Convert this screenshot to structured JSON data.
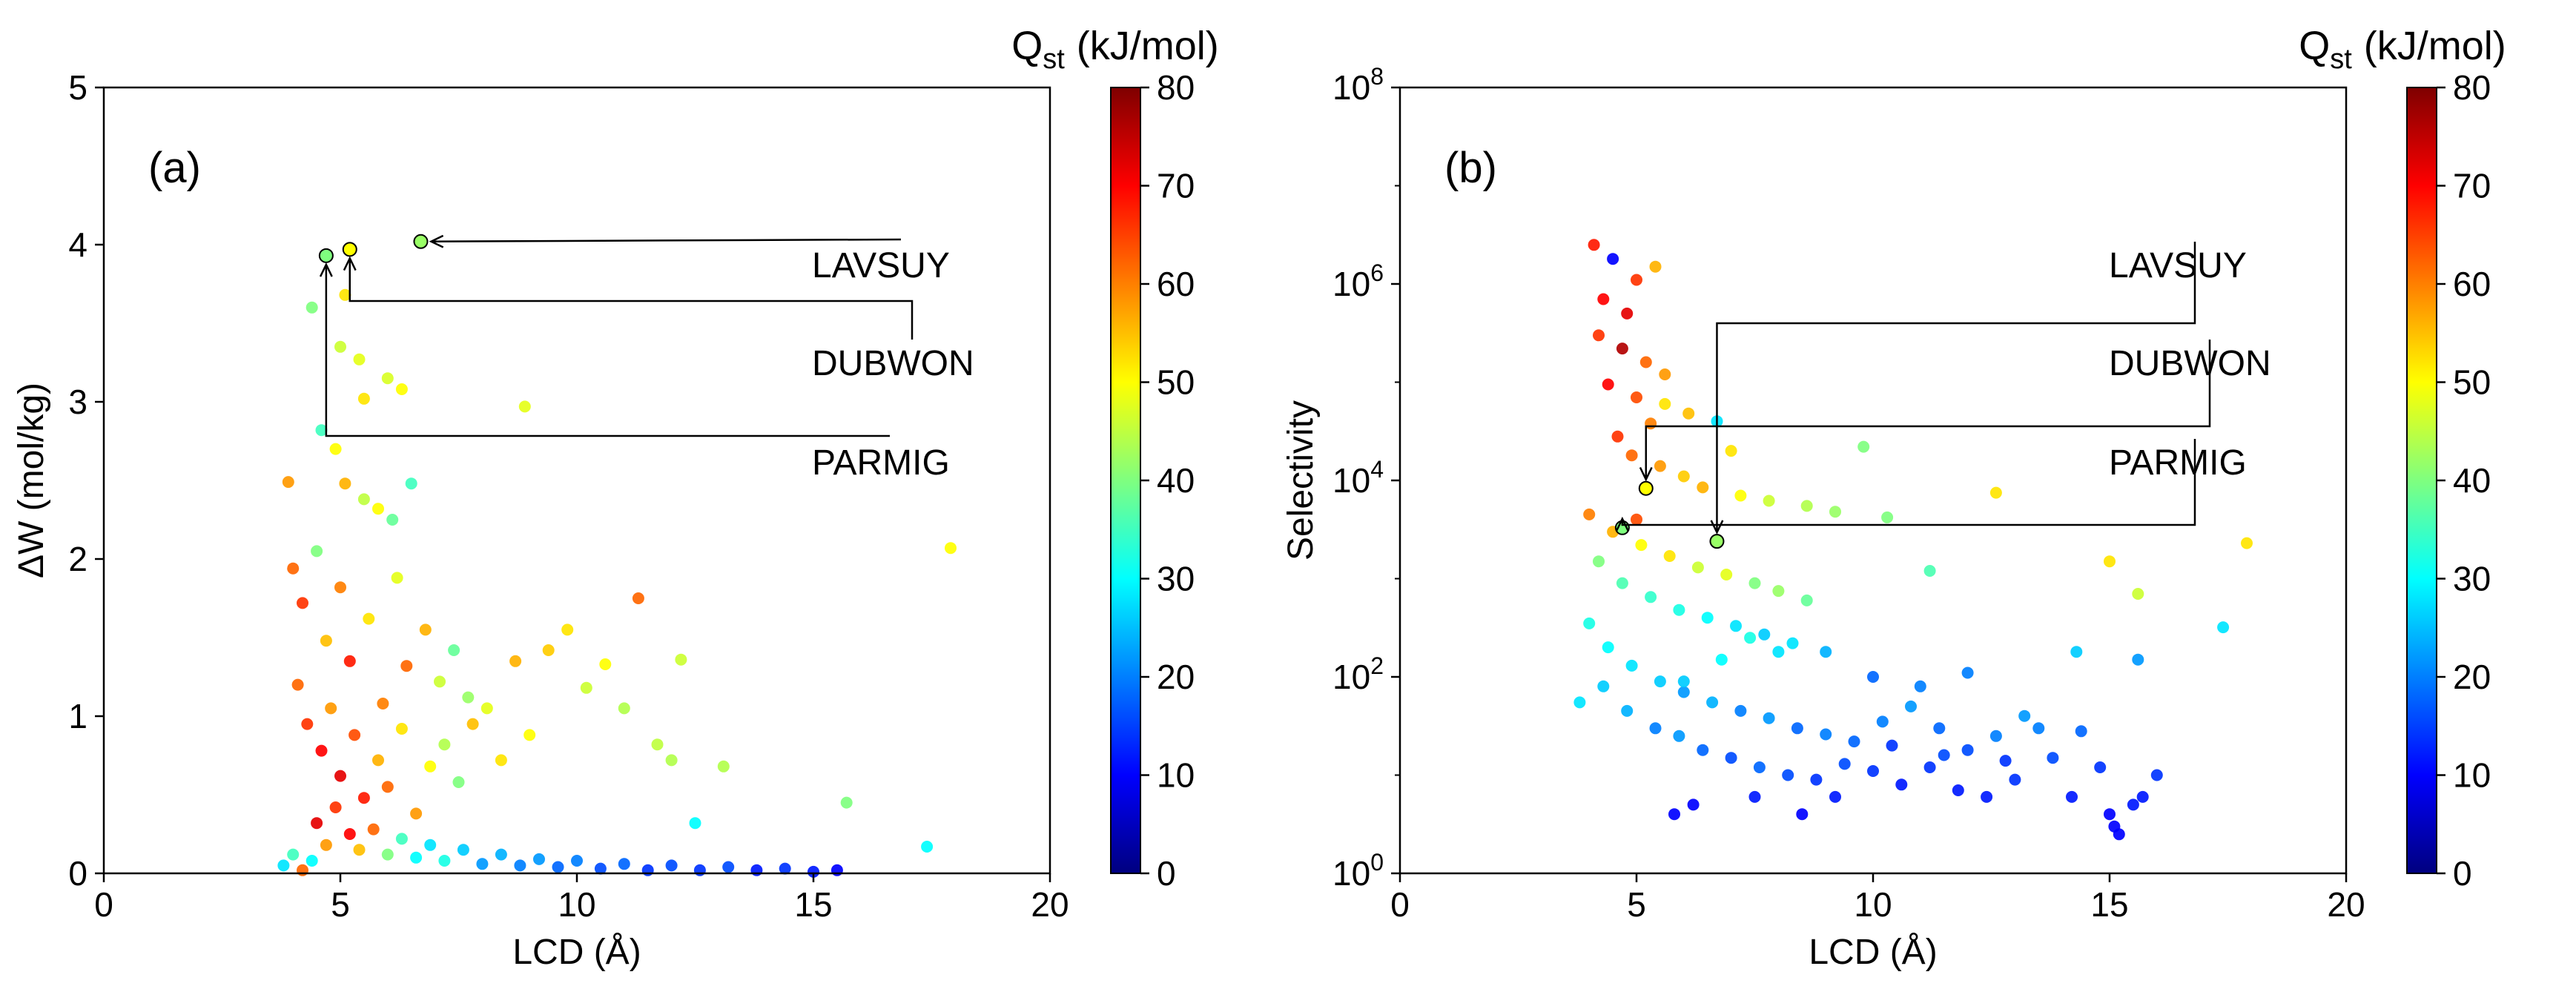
{
  "chart_data": [
    {
      "type": "scatter",
      "panel_label": "(a)",
      "xlabel": "LCD (Å)",
      "ylabel": "ΔW (mol/kg)",
      "xlim": [
        0,
        20
      ],
      "ylim": [
        0,
        5
      ],
      "yscale": "linear",
      "xticks": [
        "0",
        "5",
        "10",
        "15",
        "20"
      ],
      "yticks": [
        "0",
        "1",
        "2",
        "3",
        "4",
        "5"
      ],
      "grid": false,
      "colorbar": {
        "title": "Q",
        "title_sub": "st",
        "title_unit": "(kJ/mol)",
        "min": 0,
        "max": 80,
        "ticks": [
          "0",
          "10",
          "20",
          "30",
          "40",
          "50",
          "60",
          "70",
          "80"
        ],
        "colormap": [
          "#00007f",
          "#0000ff",
          "#007fff",
          "#00ffff",
          "#7fff7f",
          "#ffff00",
          "#ff7f00",
          "#ff0000",
          "#7f0000"
        ]
      },
      "callouts": [
        {
          "label": "LAVSUY",
          "x": 6.7,
          "y": 4.02,
          "q": 42
        },
        {
          "label": "DUBWON",
          "x": 5.2,
          "y": 3.97,
          "q": 50
        },
        {
          "label": "PARMIG",
          "x": 4.7,
          "y": 3.93,
          "q": 40
        }
      ],
      "points": [
        [
          3.9,
          2.49,
          58
        ],
        [
          4.4,
          3.6,
          40
        ],
        [
          4.6,
          2.82,
          35
        ],
        [
          5.1,
          3.68,
          52
        ],
        [
          5.0,
          3.35,
          46
        ],
        [
          5.4,
          3.27,
          48
        ],
        [
          5.5,
          3.02,
          52
        ],
        [
          6.0,
          3.15,
          47
        ],
        [
          6.3,
          3.08,
          50
        ],
        [
          8.9,
          2.97,
          48
        ],
        [
          4.9,
          2.7,
          50
        ],
        [
          5.1,
          2.48,
          56
        ],
        [
          5.5,
          2.38,
          45
        ],
        [
          5.8,
          2.32,
          50
        ],
        [
          6.1,
          2.25,
          38
        ],
        [
          6.5,
          2.48,
          35
        ],
        [
          4.0,
          1.94,
          62
        ],
        [
          4.2,
          1.72,
          66
        ],
        [
          4.5,
          2.05,
          40
        ],
        [
          4.7,
          1.48,
          55
        ],
        [
          5.0,
          1.82,
          60
        ],
        [
          5.2,
          1.35,
          68
        ],
        [
          5.6,
          1.62,
          52
        ],
        [
          5.9,
          1.08,
          60
        ],
        [
          6.2,
          1.88,
          48
        ],
        [
          6.4,
          1.32,
          62
        ],
        [
          6.8,
          1.55,
          56
        ],
        [
          7.1,
          1.22,
          46
        ],
        [
          7.4,
          1.42,
          38
        ],
        [
          7.7,
          1.12,
          42
        ],
        [
          4.1,
          1.2,
          62
        ],
        [
          4.3,
          0.95,
          66
        ],
        [
          4.6,
          0.78,
          70
        ],
        [
          4.8,
          1.05,
          58
        ],
        [
          5.0,
          0.62,
          72
        ],
        [
          5.3,
          0.88,
          64
        ],
        [
          5.5,
          0.48,
          68
        ],
        [
          5.8,
          0.72,
          56
        ],
        [
          6.0,
          0.55,
          62
        ],
        [
          6.3,
          0.92,
          52
        ],
        [
          6.6,
          0.38,
          58
        ],
        [
          6.9,
          0.68,
          50
        ],
        [
          7.2,
          0.82,
          44
        ],
        [
          7.5,
          0.58,
          40
        ],
        [
          7.8,
          0.95,
          55
        ],
        [
          8.1,
          1.05,
          48
        ],
        [
          8.4,
          0.72,
          52
        ],
        [
          8.7,
          1.35,
          56
        ],
        [
          9.0,
          0.88,
          50
        ],
        [
          9.4,
          1.42,
          54
        ],
        [
          9.8,
          1.55,
          52
        ],
        [
          10.2,
          1.18,
          46
        ],
        [
          10.6,
          1.33,
          50
        ],
        [
          11.0,
          1.05,
          44
        ],
        [
          11.3,
          1.75,
          62
        ],
        [
          11.7,
          0.82,
          45
        ],
        [
          12.0,
          0.72,
          44
        ],
        [
          12.2,
          1.36,
          46
        ],
        [
          12.5,
          0.32,
          30
        ],
        [
          13.1,
          0.68,
          44
        ],
        [
          4.5,
          0.32,
          72
        ],
        [
          4.7,
          0.18,
          58
        ],
        [
          4.9,
          0.42,
          66
        ],
        [
          5.2,
          0.25,
          70
        ],
        [
          5.4,
          0.15,
          55
        ],
        [
          5.7,
          0.28,
          62
        ],
        [
          6.0,
          0.12,
          40
        ],
        [
          6.3,
          0.22,
          35
        ],
        [
          6.6,
          0.1,
          30
        ],
        [
          6.9,
          0.18,
          28
        ],
        [
          7.2,
          0.08,
          32
        ],
        [
          7.6,
          0.15,
          26
        ],
        [
          8.0,
          0.06,
          22
        ],
        [
          8.4,
          0.12,
          24
        ],
        [
          8.8,
          0.05,
          20
        ],
        [
          9.2,
          0.09,
          22
        ],
        [
          9.6,
          0.04,
          18
        ],
        [
          10.0,
          0.08,
          20
        ],
        [
          10.5,
          0.03,
          16
        ],
        [
          11.0,
          0.06,
          18
        ],
        [
          11.5,
          0.02,
          14
        ],
        [
          12.0,
          0.05,
          16
        ],
        [
          12.6,
          0.02,
          14
        ],
        [
          13.2,
          0.04,
          16
        ],
        [
          13.8,
          0.02,
          12
        ],
        [
          14.4,
          0.03,
          14
        ],
        [
          15.0,
          0.01,
          12
        ],
        [
          15.5,
          0.02,
          10
        ],
        [
          15.7,
          0.45,
          40
        ],
        [
          17.4,
          0.17,
          30
        ],
        [
          17.9,
          2.07,
          50
        ],
        [
          3.8,
          0.05,
          28
        ],
        [
          4.0,
          0.12,
          35
        ],
        [
          4.2,
          0.02,
          62
        ],
        [
          4.4,
          0.08,
          30
        ]
      ]
    },
    {
      "type": "scatter",
      "panel_label": "(b)",
      "xlabel": "LCD (Å)",
      "ylabel": "Selectivity",
      "xlim": [
        0,
        20
      ],
      "ylim": [
        1,
        100000000
      ],
      "yscale": "log",
      "xticks": [
        "0",
        "5",
        "10",
        "15",
        "20"
      ],
      "yticks": [
        {
          "base": "10",
          "exp": "0",
          "value": 1
        },
        {
          "base": "10",
          "exp": "2",
          "value": 100
        },
        {
          "base": "10",
          "exp": "4",
          "value": 10000
        },
        {
          "base": "10",
          "exp": "6",
          "value": 1000000
        },
        {
          "base": "10",
          "exp": "8",
          "value": 100000000
        }
      ],
      "grid": false,
      "colorbar": {
        "title": "Q",
        "title_sub": "st",
        "title_unit": "(kJ/mol)",
        "min": 0,
        "max": 80,
        "ticks": [
          "0",
          "10",
          "20",
          "30",
          "40",
          "50",
          "60",
          "70",
          "80"
        ],
        "colormap": [
          "#00007f",
          "#0000ff",
          "#007fff",
          "#00ffff",
          "#7fff7f",
          "#ffff00",
          "#ff7f00",
          "#ff0000",
          "#7f0000"
        ]
      },
      "callouts": [
        {
          "label": "LAVSUY",
          "x": 6.7,
          "y": 2400,
          "q": 42
        },
        {
          "label": "DUBWON",
          "x": 5.2,
          "y": 8300,
          "q": 50
        },
        {
          "label": "PARMIG",
          "x": 4.7,
          "y": 3300,
          "q": 40
        }
      ],
      "points": [
        [
          4.1,
          2500000,
          68
        ],
        [
          4.5,
          1800000,
          10
        ],
        [
          5.0,
          1100000,
          66
        ],
        [
          5.4,
          1500000,
          56
        ],
        [
          4.3,
          700000,
          70
        ],
        [
          4.8,
          500000,
          72
        ],
        [
          4.2,
          300000,
          66
        ],
        [
          4.7,
          220000,
          76
        ],
        [
          5.2,
          160000,
          62
        ],
        [
          5.6,
          120000,
          58
        ],
        [
          4.4,
          95000,
          70
        ],
        [
          5.0,
          70000,
          64
        ],
        [
          5.6,
          60000,
          52
        ],
        [
          6.1,
          48000,
          55
        ],
        [
          6.7,
          40000,
          28
        ],
        [
          7.0,
          20000,
          52
        ],
        [
          5.3,
          38000,
          60
        ],
        [
          4.6,
          28000,
          66
        ],
        [
          4.9,
          18000,
          62
        ],
        [
          5.5,
          14000,
          58
        ],
        [
          6.0,
          11000,
          54
        ],
        [
          6.4,
          8500,
          56
        ],
        [
          7.2,
          7000,
          50
        ],
        [
          7.8,
          6200,
          46
        ],
        [
          8.6,
          5500,
          44
        ],
        [
          9.2,
          4800,
          42
        ],
        [
          9.8,
          22000,
          40
        ],
        [
          10.3,
          4200,
          40
        ],
        [
          11.2,
          1200,
          36
        ],
        [
          12.6,
          7500,
          52
        ],
        [
          15.0,
          1500,
          52
        ],
        [
          15.6,
          700,
          46
        ],
        [
          17.9,
          2300,
          52
        ],
        [
          4.0,
          4500,
          60
        ],
        [
          4.5,
          3000,
          56
        ],
        [
          5.1,
          2200,
          50
        ],
        [
          5.7,
          1700,
          52
        ],
        [
          6.3,
          1300,
          46
        ],
        [
          6.9,
          1100,
          48
        ],
        [
          7.5,
          900,
          40
        ],
        [
          8.0,
          750,
          42
        ],
        [
          8.6,
          600,
          38
        ],
        [
          4.2,
          1500,
          40
        ],
        [
          4.7,
          900,
          36
        ],
        [
          5.3,
          650,
          34
        ],
        [
          5.9,
          480,
          32
        ],
        [
          6.5,
          400,
          30
        ],
        [
          7.1,
          330,
          28
        ],
        [
          7.7,
          270,
          26
        ],
        [
          8.3,
          220,
          28
        ],
        [
          9.0,
          180,
          24
        ],
        [
          4.0,
          350,
          32
        ],
        [
          4.4,
          200,
          30
        ],
        [
          4.9,
          130,
          28
        ],
        [
          5.5,
          90,
          26
        ],
        [
          6.0,
          70,
          22
        ],
        [
          6.6,
          55,
          24
        ],
        [
          7.2,
          45,
          20
        ],
        [
          7.8,
          38,
          22
        ],
        [
          8.4,
          30,
          18
        ],
        [
          9.0,
          26,
          20
        ],
        [
          9.6,
          22,
          18
        ],
        [
          10.2,
          35,
          20
        ],
        [
          10.8,
          50,
          22
        ],
        [
          11.4,
          30,
          18
        ],
        [
          12.0,
          18,
          16
        ],
        [
          12.6,
          25,
          20
        ],
        [
          13.2,
          40,
          22
        ],
        [
          13.8,
          15,
          16
        ],
        [
          14.4,
          28,
          18
        ],
        [
          3.8,
          55,
          28
        ],
        [
          4.3,
          80,
          26
        ],
        [
          4.8,
          45,
          24
        ],
        [
          5.4,
          30,
          20
        ],
        [
          5.9,
          25,
          22
        ],
        [
          6.4,
          18,
          18
        ],
        [
          7.0,
          15,
          16
        ],
        [
          7.6,
          12,
          18
        ],
        [
          8.2,
          10,
          16
        ],
        [
          8.8,
          9,
          14
        ],
        [
          9.4,
          13,
          16
        ],
        [
          10.0,
          11,
          14
        ],
        [
          10.6,
          8,
          12
        ],
        [
          11.2,
          12,
          14
        ],
        [
          11.8,
          7,
          12
        ],
        [
          12.4,
          6,
          12
        ],
        [
          13.0,
          9,
          14
        ],
        [
          14.2,
          6,
          12
        ],
        [
          15.0,
          4,
          10
        ],
        [
          15.1,
          3,
          10
        ],
        [
          15.2,
          2.5,
          10
        ],
        [
          15.5,
          5,
          12
        ],
        [
          15.7,
          6,
          12
        ],
        [
          6.2,
          5,
          10
        ],
        [
          5.8,
          4,
          10
        ],
        [
          7.5,
          6,
          12
        ],
        [
          8.5,
          4,
          10
        ],
        [
          9.2,
          6,
          12
        ],
        [
          10.4,
          20,
          14
        ],
        [
          11.5,
          16,
          16
        ],
        [
          12.8,
          14,
          14
        ],
        [
          13.5,
          30,
          20
        ],
        [
          14.8,
          12,
          14
        ],
        [
          16.0,
          10,
          14
        ],
        [
          17.4,
          320,
          28
        ],
        [
          15.6,
          150,
          22
        ],
        [
          14.3,
          180,
          26
        ],
        [
          11.0,
          80,
          20
        ],
        [
          10.0,
          100,
          18
        ],
        [
          12.0,
          110,
          20
        ],
        [
          6.0,
          90,
          26
        ],
        [
          6.8,
          150,
          30
        ],
        [
          7.4,
          250,
          32
        ],
        [
          8.0,
          180,
          28
        ],
        [
          5.0,
          4000,
          64
        ]
      ]
    }
  ]
}
